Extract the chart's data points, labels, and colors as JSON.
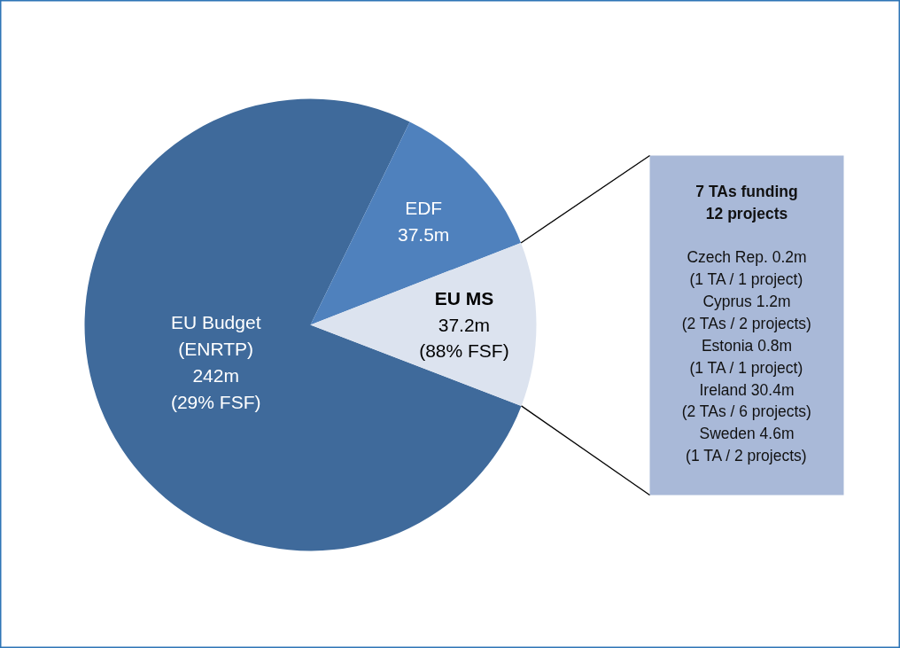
{
  "chart_data": {
    "type": "pie",
    "categories": [
      "EU Budget\n(ENRTP)",
      "EDF",
      "EU MS"
    ],
    "values": [
      242,
      37.5,
      37.2
    ],
    "colors": [
      "#3f6a9b",
      "#4f81bd",
      "#dce3ef"
    ],
    "value_labels": [
      "242m",
      "37.5m",
      "37.2m"
    ],
    "annotations": [
      {
        "text": "(29% FSF)",
        "x": "EU Budget\n(ENRTP)"
      },
      {
        "text": "(88% FSF)",
        "x": "EU MS"
      },
      "7 TAs funding\n12 projects",
      "Czech Rep. 0.2m\n(1 TA / 1 project)\nCyprus 1.2m\n(2 TAs / 2 projects)\nEstonia 0.8m\n(1 TA / 1 project)\nIreland 30.4m\n(2 TAs / 6 projects)\nSweden 4.6m\n(1 TA / 2 projects)"
    ],
    "legend": false
  }
}
